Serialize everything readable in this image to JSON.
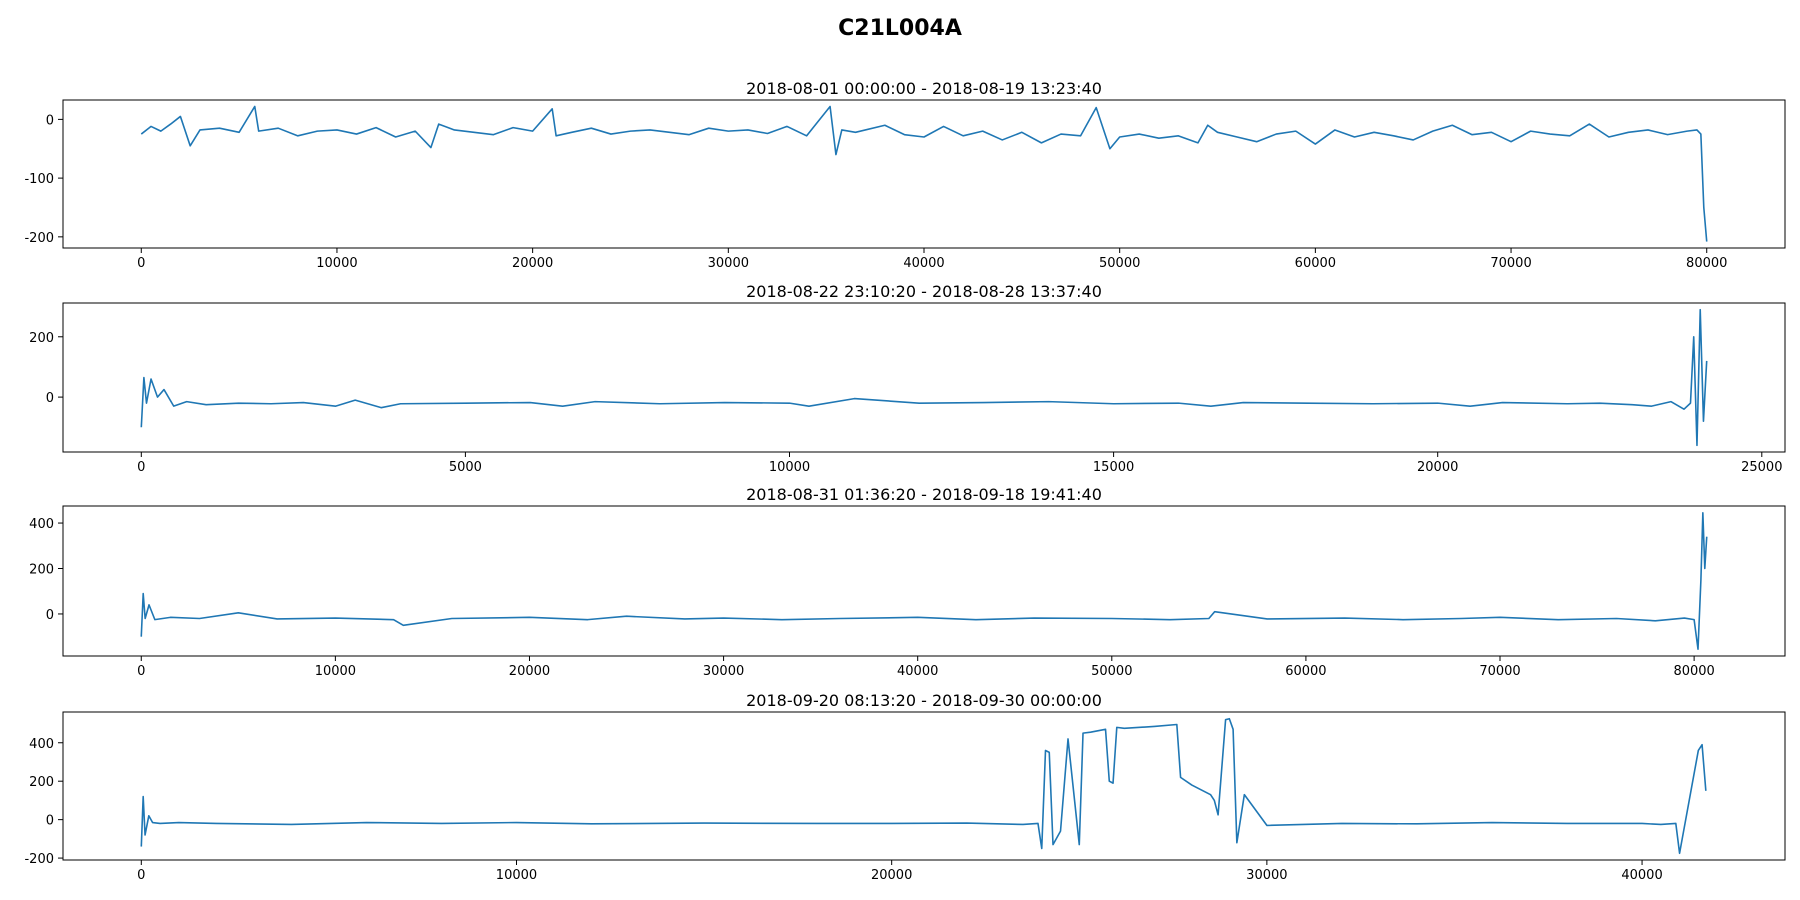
{
  "title": "C21L004A",
  "chart_data": [
    {
      "type": "line",
      "title": "2018-08-01 00:00:00 - 2018-08-19 13:23:40",
      "x": [
        0,
        500,
        1000,
        1500,
        2000,
        2500,
        3000,
        4000,
        5000,
        5800,
        6000,
        7000,
        8000,
        9000,
        10000,
        11000,
        12000,
        13000,
        14000,
        14800,
        15200,
        16000,
        17000,
        18000,
        19000,
        20000,
        21000,
        21200,
        22000,
        23000,
        24000,
        25000,
        26000,
        27000,
        28000,
        29000,
        30000,
        31000,
        32000,
        33000,
        34000,
        35200,
        35500,
        35800,
        36500,
        38000,
        39000,
        40000,
        41000,
        42000,
        43000,
        44000,
        45000,
        46000,
        47000,
        48000,
        48800,
        49500,
        50000,
        51000,
        52000,
        53000,
        54000,
        54500,
        55000,
        56000,
        57000,
        58000,
        59000,
        60000,
        61000,
        62000,
        63000,
        64000,
        65000,
        66000,
        67000,
        68000,
        69000,
        70000,
        71000,
        72000,
        73000,
        74000,
        75000,
        76000,
        77000,
        78000,
        79000,
        79500,
        79700,
        79850,
        80000
      ],
      "series": [
        {
          "color": "#1f77b4",
          "values": [
            -25,
            -12,
            -20,
            -8,
            5,
            -45,
            -18,
            -15,
            -22,
            22,
            -20,
            -15,
            -28,
            -20,
            -18,
            -25,
            -14,
            -30,
            -20,
            -48,
            -8,
            -18,
            -22,
            -26,
            -14,
            -20,
            18,
            -28,
            -22,
            -15,
            -25,
            -20,
            -18,
            -22,
            -26,
            -15,
            -20,
            -18,
            -24,
            -12,
            -28,
            22,
            -60,
            -18,
            -22,
            -10,
            -26,
            -30,
            -12,
            -28,
            -20,
            -35,
            -22,
            -40,
            -25,
            -28,
            20,
            -50,
            -30,
            -25,
            -32,
            -28,
            -40,
            -10,
            -22,
            -30,
            -38,
            -25,
            -20,
            -42,
            -18,
            -30,
            -22,
            -28,
            -35,
            -20,
            -10,
            -26,
            -22,
            -38,
            -20,
            -25,
            -28,
            -8,
            -30,
            -22,
            -18,
            -26,
            -20,
            -18,
            -25,
            -150,
            -208
          ]
        }
      ],
      "xlim": [
        -4000,
        84000
      ],
      "ylim": [
        -219,
        33
      ],
      "xticks": [
        0,
        10000,
        20000,
        30000,
        40000,
        50000,
        60000,
        70000,
        80000
      ],
      "yticks": [
        -200,
        -100,
        0
      ]
    },
    {
      "type": "line",
      "title": "2018-08-22 23:10:20 - 2018-08-28 13:37:40",
      "x": [
        0,
        40,
        80,
        150,
        250,
        350,
        500,
        700,
        1000,
        1500,
        2000,
        2500,
        3000,
        3300,
        3700,
        4000,
        5000,
        6000,
        6500,
        7000,
        8000,
        9000,
        10000,
        10300,
        11000,
        12000,
        13000,
        14000,
        15000,
        16000,
        16500,
        17000,
        18000,
        19000,
        20000,
        20500,
        21000,
        22000,
        22500,
        23000,
        23300,
        23600,
        23800,
        23900,
        23950,
        24000,
        24050,
        24100,
        24150
      ],
      "series": [
        {
          "color": "#1f77b4",
          "values": [
            -100,
            65,
            -20,
            60,
            0,
            25,
            -30,
            -15,
            -25,
            -20,
            -22,
            -18,
            -30,
            -10,
            -35,
            -22,
            -20,
            -18,
            -30,
            -15,
            -22,
            -18,
            -20,
            -30,
            -5,
            -20,
            -18,
            -15,
            -22,
            -20,
            -30,
            -18,
            -20,
            -22,
            -20,
            -30,
            -18,
            -22,
            -20,
            -25,
            -30,
            -15,
            -40,
            -20,
            200,
            -160,
            290,
            -80,
            120
          ]
        }
      ],
      "xlim": [
        -1208,
        25358
      ],
      "ylim": [
        -182,
        312
      ],
      "xticks": [
        0,
        5000,
        10000,
        15000,
        20000,
        25000
      ],
      "yticks": [
        0,
        200
      ]
    },
    {
      "type": "line",
      "title": "2018-08-31 01:36:20 - 2018-09-18 19:41:40",
      "x": [
        0,
        100,
        200,
        400,
        700,
        1500,
        3000,
        5000,
        7000,
        10000,
        13000,
        13500,
        16000,
        20000,
        23000,
        25000,
        28000,
        30000,
        33000,
        36000,
        40000,
        43000,
        46000,
        50000,
        53000,
        55000,
        55300,
        58000,
        62000,
        65000,
        68000,
        70000,
        73000,
        76000,
        78000,
        79500,
        80000,
        80200,
        80350,
        80450,
        80550,
        80650
      ],
      "series": [
        {
          "color": "#1f77b4",
          "values": [
            -100,
            90,
            -20,
            40,
            -25,
            -15,
            -20,
            5,
            -22,
            -18,
            -25,
            -50,
            -20,
            -15,
            -25,
            -10,
            -22,
            -18,
            -25,
            -20,
            -15,
            -25,
            -18,
            -20,
            -25,
            -20,
            10,
            -22,
            -18,
            -25,
            -20,
            -15,
            -25,
            -20,
            -30,
            -18,
            -25,
            -155,
            150,
            445,
            200,
            340
          ]
        }
      ],
      "xlim": [
        -4032,
        84682
      ],
      "ylim": [
        -185,
        475
      ],
      "xticks": [
        0,
        10000,
        20000,
        30000,
        40000,
        50000,
        60000,
        70000,
        80000
      ],
      "yticks": [
        0,
        200,
        400
      ]
    },
    {
      "type": "line",
      "title": "2018-09-20 08:13:20 - 2018-09-30 00:00:00",
      "x": [
        0,
        50,
        100,
        200,
        300,
        500,
        1000,
        2000,
        4000,
        6000,
        8000,
        10000,
        12000,
        15000,
        18000,
        20000,
        22000,
        23500,
        23900,
        24000,
        24100,
        24200,
        24300,
        24500,
        24700,
        25000,
        25100,
        25300,
        25700,
        25800,
        25900,
        26000,
        26200,
        27000,
        27600,
        27700,
        28000,
        28500,
        28600,
        28700,
        28900,
        29000,
        29100,
        29200,
        29400,
        30000,
        32000,
        34000,
        36000,
        38000,
        40000,
        40500,
        40900,
        41000,
        41500,
        41600,
        41700
      ],
      "series": [
        {
          "color": "#1f77b4",
          "values": [
            -140,
            120,
            -80,
            20,
            -15,
            -20,
            -15,
            -20,
            -25,
            -15,
            -20,
            -15,
            -22,
            -18,
            -20,
            -20,
            -18,
            -25,
            -20,
            -150,
            360,
            350,
            -130,
            -60,
            420,
            -130,
            450,
            455,
            470,
            200,
            190,
            480,
            475,
            485,
            495,
            220,
            180,
            130,
            100,
            25,
            520,
            525,
            470,
            -120,
            130,
            -30,
            -20,
            -22,
            -15,
            -20,
            -20,
            -25,
            -20,
            -175,
            360,
            390,
            150
          ]
        }
      ],
      "xlim": [
        -2087,
        43810
      ],
      "ylim": [
        -210,
        560
      ],
      "xticks": [
        0,
        10000,
        20000,
        30000,
        40000
      ],
      "yticks": [
        -200,
        0,
        200,
        400
      ]
    }
  ]
}
